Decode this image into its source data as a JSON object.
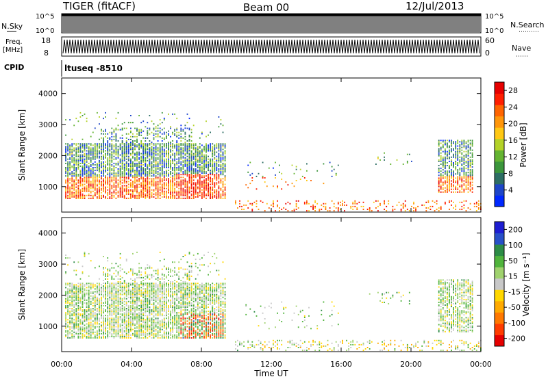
{
  "header": {
    "station": "TIGER (fitACF)",
    "beam": "Beam 00",
    "date": "12/Jul/2013"
  },
  "params": {
    "nsky_label": "N.Sky",
    "nsky_ticks": [
      "10^5",
      "10^0"
    ],
    "nsearch_label": "N.Search",
    "nsearch_ticks": [
      "10^5",
      "10^0"
    ],
    "freq_label_1": "Freq.",
    "freq_label_2": "[MHz]",
    "freq_ticks": [
      "18",
      "8"
    ],
    "nave_label": "Nave",
    "nave_ticks": [
      "60",
      "0"
    ],
    "cpid_label": "CPID",
    "cpid_value": "ltuseq -8510"
  },
  "colors": {
    "power_scale": [
      "#0028ff",
      "#1e46c8",
      "#2d6e64",
      "#3c963c",
      "#64b432",
      "#b4d228",
      "#ffc814",
      "#ff960a",
      "#ff6400",
      "#ff1e00",
      "#e60000"
    ],
    "velocity_scale": [
      "#e60000",
      "#ff3c00",
      "#ff7800",
      "#ffaa00",
      "#ffd700",
      "#c8c8c8",
      "#a0d26e",
      "#50b43c",
      "#2d8c46",
      "#2850c8",
      "#1e1ed2"
    ]
  },
  "chart_data": [
    {
      "type": "heatmap",
      "name": "power",
      "ylabel": "Slant Range [km]",
      "xlabel": "Time UT",
      "x_ticks": [
        "00:00",
        "04:00",
        "08:00",
        "12:00",
        "16:00",
        "20:00",
        "00:00"
      ],
      "y_ticks": [
        "1000",
        "2000",
        "3000",
        "4000"
      ],
      "xlim": [
        0,
        24
      ],
      "ylim": [
        180,
        4500
      ],
      "colorbar_label": "Power [dB]",
      "colorbar_ticks": [
        "4",
        "8",
        "12",
        "16",
        "20",
        "24",
        "28"
      ],
      "colorbar_range": [
        0,
        30
      ]
    },
    {
      "type": "heatmap",
      "name": "velocity",
      "ylabel": "Slant Range [km]",
      "xlabel": "Time UT",
      "x_ticks": [
        "00:00",
        "04:00",
        "08:00",
        "12:00",
        "16:00",
        "20:00",
        "00:00"
      ],
      "y_ticks": [
        "1000",
        "2000",
        "3000",
        "4000"
      ],
      "xlim": [
        0,
        24
      ],
      "ylim": [
        180,
        4500
      ],
      "colorbar_label": "Velocity [m s⁻¹]",
      "colorbar_ticks": [
        "200",
        "100",
        "50",
        "15",
        "-15",
        "-50",
        "-100",
        "-200"
      ],
      "colorbar_range": [
        -250,
        250
      ]
    }
  ],
  "x_axis_label": "Time UT"
}
